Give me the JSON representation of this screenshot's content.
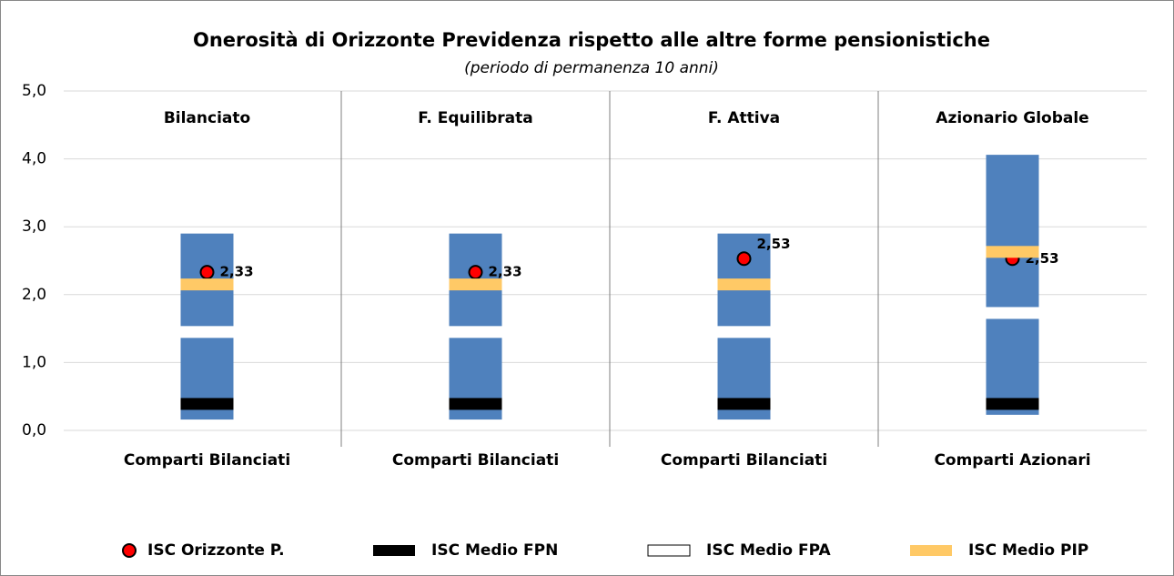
{
  "chart_data": {
    "type": "range",
    "title": "Onerosità di Orizzonte Previdenza rispetto alle altre forme pensionistiche",
    "subtitle": "(periodo di permanenza 10 anni)",
    "panels": [
      "Bilanciato",
      "F. Equilibrata",
      "F. Attiva",
      "Azionario Globale"
    ],
    "categories": [
      "Comparti Bilanciati",
      "Comparti Bilanciati",
      "Comparti Bilanciati",
      "Comparti Azionari"
    ],
    "range": {
      "color": "#4f81bd",
      "low": [
        0.16,
        0.16,
        0.16,
        0.23
      ],
      "high": [
        2.9,
        2.9,
        2.9,
        4.06
      ]
    },
    "series": [
      {
        "name": "ISC Orizzonte P.",
        "color": "#ff0000",
        "marker": "dot",
        "values": [
          2.33,
          2.33,
          2.53,
          2.53
        ],
        "value_labels": [
          "2,33",
          "2,33",
          "2,53",
          "2,53"
        ]
      },
      {
        "name": "ISC Medio FPN",
        "color": "#000000",
        "marker": "dash",
        "values": [
          0.39,
          0.39,
          0.39,
          0.39
        ]
      },
      {
        "name": "ISC Medio FPA",
        "color": "#ffffff",
        "marker": "dash",
        "values": [
          1.45,
          1.45,
          1.45,
          1.73
        ]
      },
      {
        "name": "ISC Medio PIP",
        "color": "#ffc966",
        "marker": "dash",
        "values": [
          2.15,
          2.15,
          2.15,
          2.63
        ]
      }
    ],
    "ylim": [
      0,
      5
    ],
    "yticks": [
      {
        "value": 0,
        "label": "0,0"
      },
      {
        "value": 1,
        "label": "1,0"
      },
      {
        "value": 2,
        "label": "2,0"
      },
      {
        "value": 3,
        "label": "3,0"
      },
      {
        "value": 4,
        "label": "4,0"
      },
      {
        "value": 5,
        "label": "5,0"
      }
    ],
    "grid": true,
    "legend": "bottom"
  }
}
